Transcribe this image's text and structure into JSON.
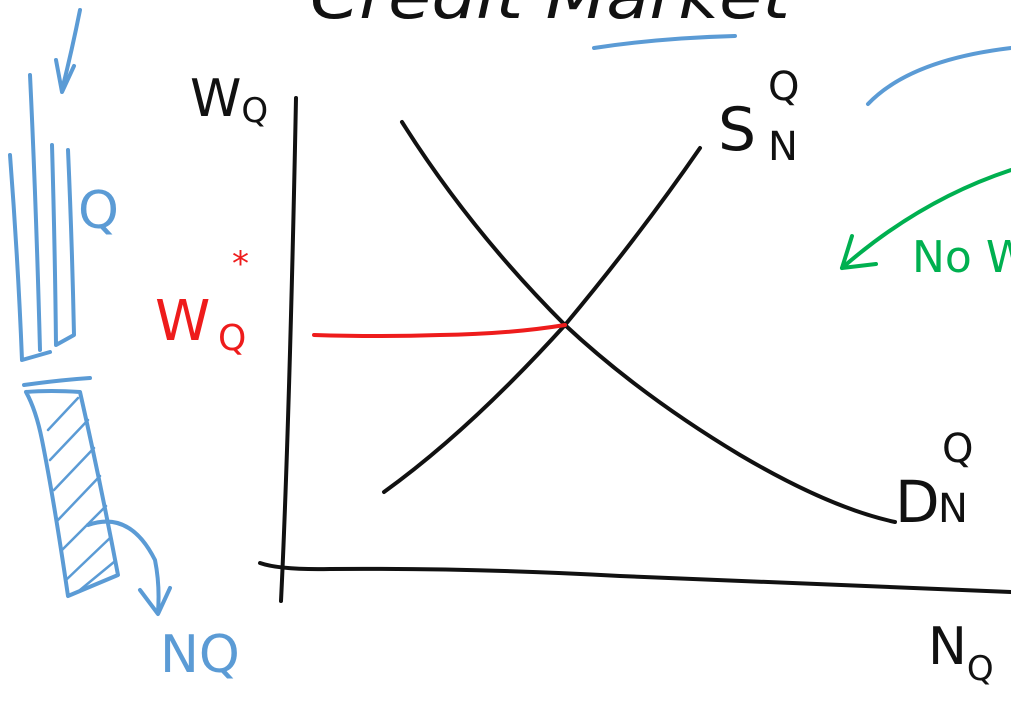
{
  "title": "Credit Market",
  "axes": {
    "y_label": "W",
    "y_label_sub": "Q",
    "x_label": "N",
    "x_label_sub": "Q"
  },
  "curves": {
    "supply": {
      "label": "S",
      "subscript": "N",
      "superscript": "Q"
    },
    "demand": {
      "label": "D",
      "subscript": "N",
      "superscript": "Q"
    }
  },
  "equilibrium": {
    "label": "W",
    "subscript": "Q",
    "superscript": "*"
  },
  "left_sketch": {
    "top_label": "Q",
    "bottom_label": "NQ"
  },
  "side_note": {
    "text": "No W"
  },
  "colors": {
    "axes": "#111111",
    "curves": "#111111",
    "equilibrium": "#ee1c1c",
    "annotation_blue": "#5b9bd5",
    "annotation_green": "#00b050",
    "background": "#ffffff"
  }
}
